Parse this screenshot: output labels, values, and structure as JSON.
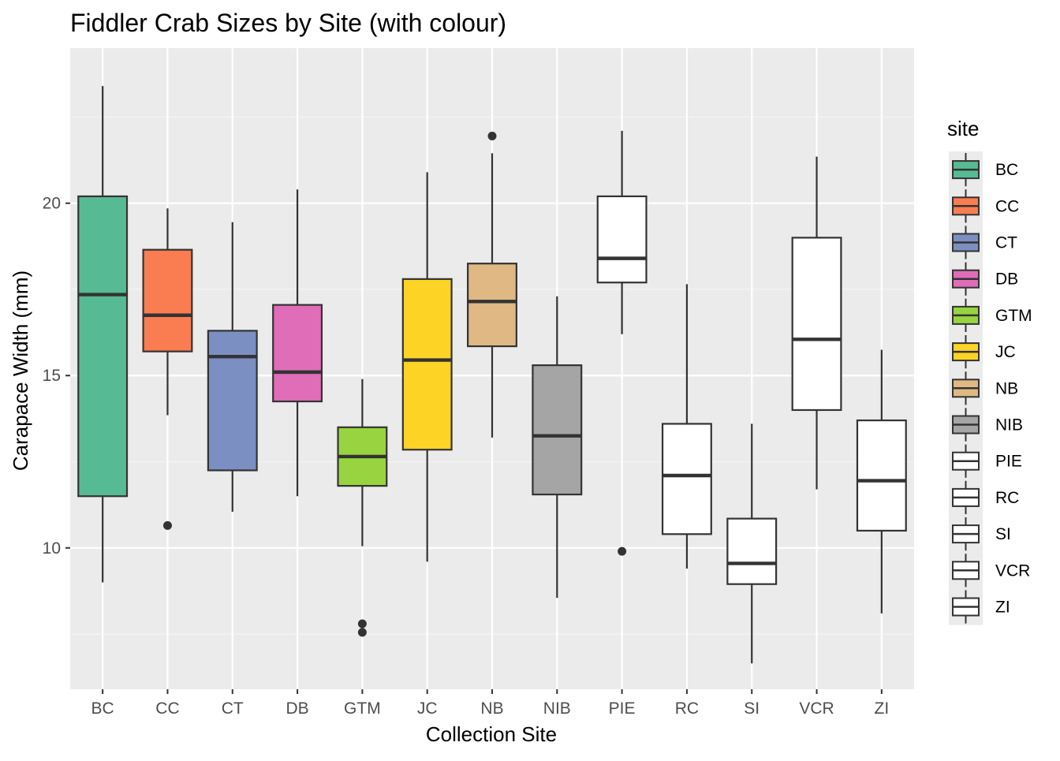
{
  "chart_data": {
    "type": "boxplot",
    "title": "Fiddler Crab Sizes by Site (with colour)",
    "xlabel": "Collection Site",
    "ylabel": "Carapace Width (mm)",
    "ylim": [
      5.9,
      24.5
    ],
    "yticks": [
      10,
      15,
      20
    ],
    "grid": true,
    "legend": {
      "title": "site",
      "placement": "right"
    },
    "categories": [
      "BC",
      "CC",
      "CT",
      "DB",
      "GTM",
      "JC",
      "NB",
      "NIB",
      "PIE",
      "RC",
      "SI",
      "VCR",
      "ZI"
    ],
    "boxes": [
      {
        "site": "BC",
        "min": 9.0,
        "q1": 11.5,
        "median": 17.35,
        "q3": 20.2,
        "max": 23.4,
        "outliers": [],
        "fill": "#56BB94"
      },
      {
        "site": "CC",
        "min": 13.85,
        "q1": 15.7,
        "median": 16.75,
        "q3": 18.65,
        "max": 19.85,
        "outliers": [
          10.65
        ],
        "fill": "#F97D51"
      },
      {
        "site": "CT",
        "min": 11.05,
        "q1": 12.25,
        "median": 15.55,
        "q3": 16.3,
        "max": 19.45,
        "outliers": [],
        "fill": "#7B8FC2"
      },
      {
        "site": "DB",
        "min": 11.5,
        "q1": 14.25,
        "median": 15.1,
        "q3": 17.05,
        "max": 20.4,
        "outliers": [],
        "fill": "#E06DB8"
      },
      {
        "site": "GTM",
        "min": 10.05,
        "q1": 11.8,
        "median": 12.65,
        "q3": 13.5,
        "max": 14.9,
        "outliers": [
          7.8,
          7.55
        ],
        "fill": "#97D43F"
      },
      {
        "site": "JC",
        "min": 9.6,
        "q1": 12.85,
        "median": 15.45,
        "q3": 17.8,
        "max": 20.9,
        "outliers": [],
        "fill": "#FDD325"
      },
      {
        "site": "NB",
        "min": 13.2,
        "q1": 15.85,
        "median": 17.15,
        "q3": 18.25,
        "max": 21.45,
        "outliers": [
          21.95
        ],
        "fill": "#DFB883"
      },
      {
        "site": "NIB",
        "min": 8.55,
        "q1": 11.55,
        "median": 13.25,
        "q3": 15.3,
        "max": 17.3,
        "outliers": [],
        "fill": "#A5A5A5"
      },
      {
        "site": "PIE",
        "min": 16.2,
        "q1": 17.7,
        "median": 18.4,
        "q3": 20.2,
        "max": 22.1,
        "outliers": [
          9.9
        ],
        "fill": "#FFFFFF"
      },
      {
        "site": "RC",
        "min": 9.4,
        "q1": 10.4,
        "median": 12.1,
        "q3": 13.6,
        "max": 17.65,
        "outliers": [],
        "fill": "#FFFFFF"
      },
      {
        "site": "SI",
        "min": 6.65,
        "q1": 8.95,
        "median": 9.55,
        "q3": 10.85,
        "max": 13.6,
        "outliers": [],
        "fill": "#FFFFFF"
      },
      {
        "site": "VCR",
        "min": 11.7,
        "q1": 14.0,
        "median": 16.05,
        "q3": 19.0,
        "max": 21.35,
        "outliers": [],
        "fill": "#FFFFFF"
      },
      {
        "site": "ZI",
        "min": 8.1,
        "q1": 10.5,
        "median": 11.95,
        "q3": 13.7,
        "max": 15.75,
        "outliers": [],
        "fill": "#FFFFFF"
      }
    ],
    "colors": {
      "panel_background": "#EBEBEB",
      "grid_major": "#FFFFFF",
      "grid_minor": "#F5F5F5",
      "stroke": "#333333",
      "legend_key_background": "#EBEBEB"
    }
  }
}
